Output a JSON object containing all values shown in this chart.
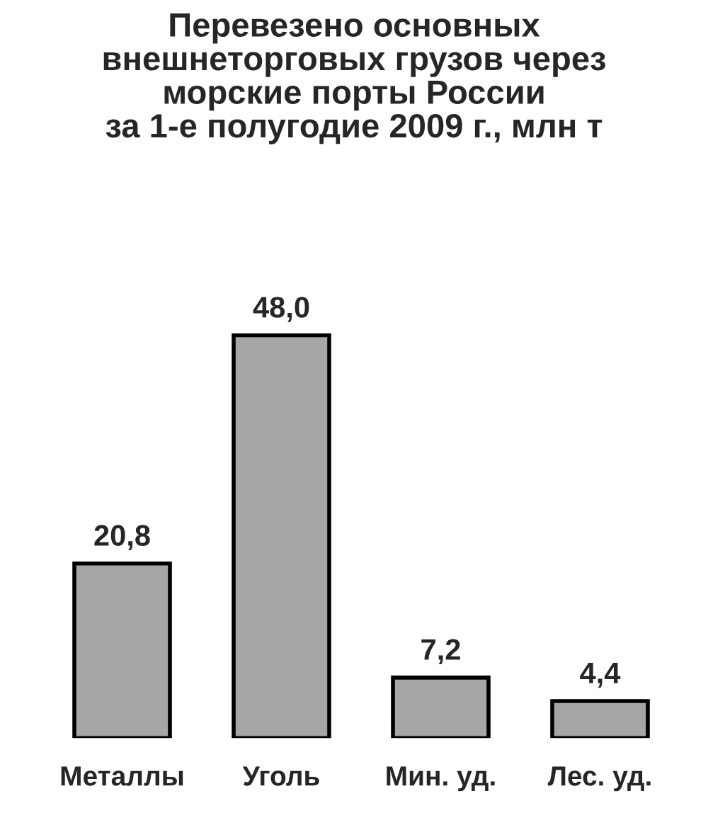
{
  "chart_data": {
    "type": "bar",
    "title": "Перевезено основных\nвнешнеторговых грузов через\nморские порты России\nза 1-е полугодие 2009 г., млн т",
    "categories": [
      "Металлы",
      "Уголь",
      "Мин. уд.",
      "Лес. уд."
    ],
    "values": [
      20.8,
      48.0,
      7.2,
      4.4
    ],
    "value_labels": [
      "20,8",
      "48,0",
      "7,2",
      "4,4"
    ],
    "color": "#a6a6a6",
    "grid": false,
    "legend": false
  }
}
